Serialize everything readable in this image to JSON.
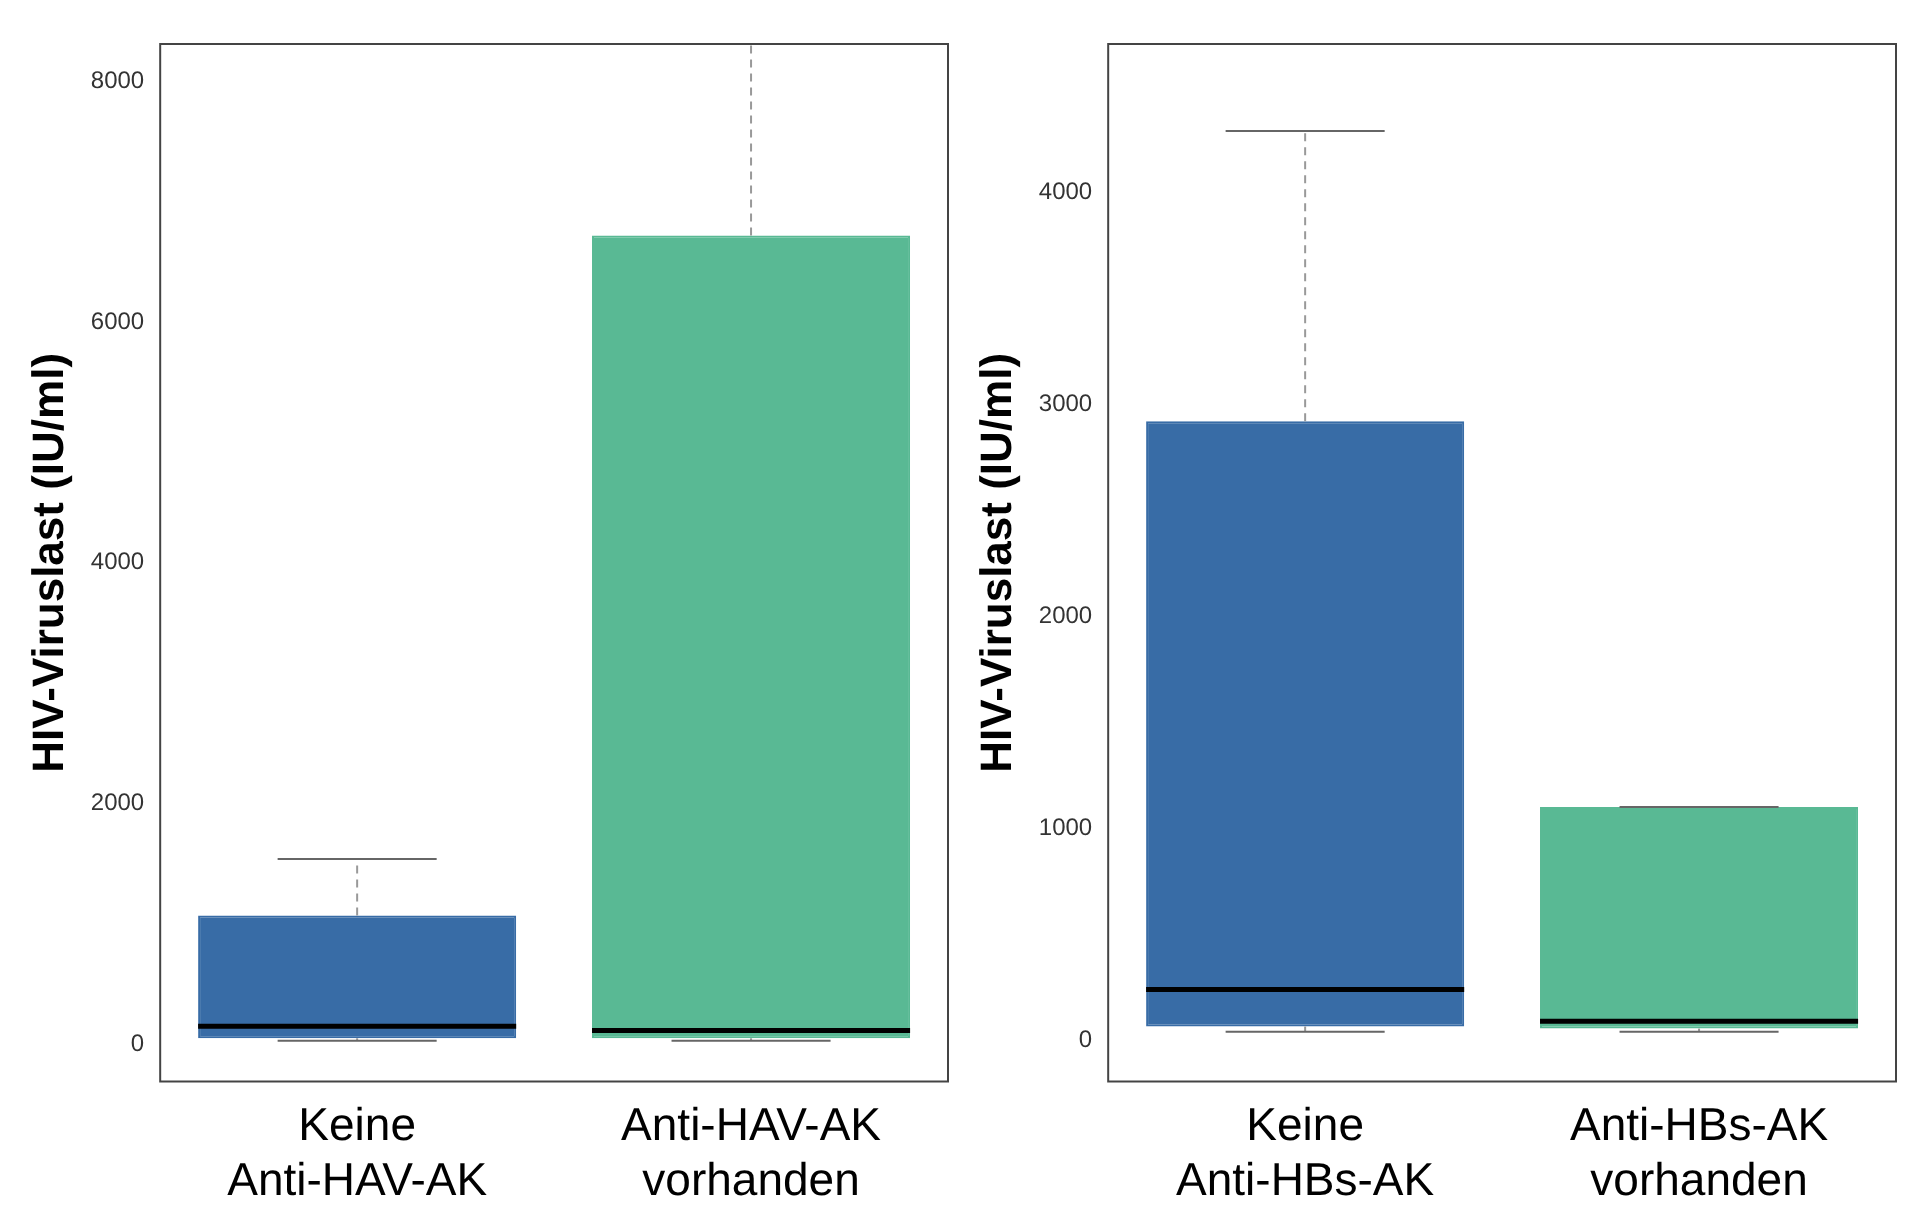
{
  "chart_data": [
    {
      "type": "box",
      "ylabel": "HIV-Viruslast (IU/ml)",
      "categories": [
        "Keine Anti-HAV-AK",
        "Anti-HAV-AK vorhanden"
      ],
      "colors": [
        "#386ca6",
        "#59b994"
      ],
      "boxes": [
        {
          "low": 30,
          "q1": 50,
          "median": 150,
          "q3": 1070,
          "high": 1540
        },
        {
          "low": 30,
          "q1": 50,
          "median": 115,
          "q3": 6720,
          "high": 8310
        }
      ],
      "ylim": [
        -310,
        8310
      ],
      "yticks": [
        0,
        2000,
        4000,
        6000,
        8000
      ],
      "grid": false,
      "legend": false
    },
    {
      "type": "box",
      "ylabel": "HIV-Viruslast (IU/ml)",
      "categories": [
        "Keine Anti-HBs-AK",
        "Anti-HBs-AK vorhanden"
      ],
      "colors": [
        "#386ca6",
        "#59b994"
      ],
      "boxes": [
        {
          "low": 40,
          "q1": 65,
          "median": 240,
          "q3": 2920,
          "high": 4290
        },
        {
          "low": 40,
          "q1": 55,
          "median": 90,
          "q3": 1100,
          "high": 1100
        }
      ],
      "ylim": [
        -195,
        4700
      ],
      "yticks": [
        0,
        1000,
        2000,
        3000,
        4000
      ],
      "grid": false,
      "legend": false
    }
  ]
}
